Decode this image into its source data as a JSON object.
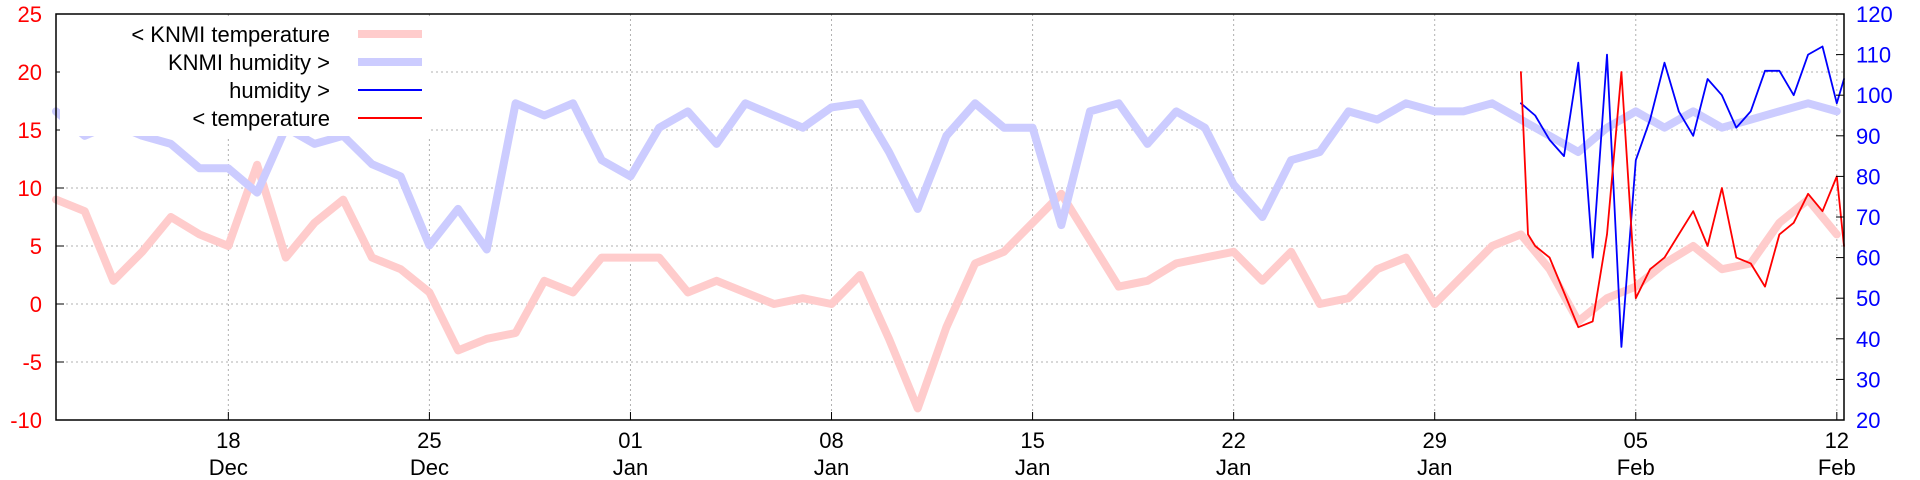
{
  "chart_data": {
    "type": "line",
    "x_start": "2020-12-12",
    "x_end": "2021-02-12",
    "x_ticks": [
      {
        "date": "2020-12-18",
        "day": "18",
        "month": "Dec"
      },
      {
        "date": "2020-12-25",
        "day": "25",
        "month": "Dec"
      },
      {
        "date": "2021-01-01",
        "day": "01",
        "month": "Jan"
      },
      {
        "date": "2021-01-08",
        "day": "08",
        "month": "Jan"
      },
      {
        "date": "2021-01-15",
        "day": "15",
        "month": "Jan"
      },
      {
        "date": "2021-01-22",
        "day": "22",
        "month": "Jan"
      },
      {
        "date": "2021-01-29",
        "day": "29",
        "month": "Jan"
      },
      {
        "date": "2021-02-05",
        "day": "05",
        "month": "Feb"
      },
      {
        "date": "2021-02-12",
        "day": "12",
        "month": "Feb"
      }
    ],
    "y_left": {
      "ylim": [
        -10,
        25
      ],
      "ticks": [
        "-10",
        "-5",
        "0",
        "5",
        "10",
        "15",
        "20",
        "25"
      ],
      "color": "#ff0000"
    },
    "y_right": {
      "ylim": [
        20,
        120
      ],
      "ticks": [
        "20",
        "30",
        "40",
        "50",
        "60",
        "70",
        "80",
        "90",
        "100",
        "110",
        "120"
      ],
      "color": "#0000ff"
    },
    "grid": true,
    "legend": {
      "placement": "top-left",
      "entries": [
        {
          "key": "knmi_temp",
          "label": "< KNMI temperature"
        },
        {
          "key": "knmi_hum",
          "label": "KNMI humidity >"
        },
        {
          "key": "hum",
          "label": "humidity >"
        },
        {
          "key": "temp",
          "label": "< temperature"
        }
      ]
    },
    "series": [
      {
        "key": "knmi_temp",
        "name": "< KNMI temperature",
        "axis": "left",
        "color": "#ffcccc",
        "points": [
          [
            "2020-12-12",
            9.0
          ],
          [
            "2020-12-13",
            8.0
          ],
          [
            "2020-12-14",
            2.0
          ],
          [
            "2020-12-15",
            4.5
          ],
          [
            "2020-12-16",
            7.5
          ],
          [
            "2020-12-17",
            6.0
          ],
          [
            "2020-12-18",
            5.0
          ],
          [
            "2020-12-19",
            12.0
          ],
          [
            "2020-12-20",
            4.0
          ],
          [
            "2020-12-21",
            7.0
          ],
          [
            "2020-12-22",
            9.0
          ],
          [
            "2020-12-23",
            4.0
          ],
          [
            "2020-12-24",
            3.0
          ],
          [
            "2020-12-25",
            1.0
          ],
          [
            "2020-12-26",
            -4.0
          ],
          [
            "2020-12-27",
            -3.0
          ],
          [
            "2020-12-28",
            -2.5
          ],
          [
            "2020-12-29",
            2.0
          ],
          [
            "2020-12-30",
            1.0
          ],
          [
            "2020-12-31",
            4.0
          ],
          [
            "2021-01-01",
            4.0
          ],
          [
            "2021-01-02",
            4.0
          ],
          [
            "2021-01-03",
            1.0
          ],
          [
            "2021-01-04",
            2.0
          ],
          [
            "2021-01-05",
            1.0
          ],
          [
            "2021-01-06",
            0.0
          ],
          [
            "2021-01-07",
            0.5
          ],
          [
            "2021-01-08",
            0.0
          ],
          [
            "2021-01-09",
            2.5
          ],
          [
            "2021-01-10",
            -3.0
          ],
          [
            "2021-01-11",
            -9.0
          ],
          [
            "2021-01-12",
            -2.0
          ],
          [
            "2021-01-13",
            3.5
          ],
          [
            "2021-01-14",
            4.5
          ],
          [
            "2021-01-15",
            7.0
          ],
          [
            "2021-01-16",
            9.5
          ],
          [
            "2021-01-17",
            5.5
          ],
          [
            "2021-01-18",
            1.5
          ],
          [
            "2021-01-19",
            2.0
          ],
          [
            "2021-01-20",
            3.5
          ],
          [
            "2021-01-21",
            4.0
          ],
          [
            "2021-01-22",
            4.5
          ],
          [
            "2021-01-23",
            2.0
          ],
          [
            "2021-01-24",
            4.5
          ],
          [
            "2021-01-25",
            0.0
          ],
          [
            "2021-01-26",
            0.5
          ],
          [
            "2021-01-27",
            3.0
          ],
          [
            "2021-01-28",
            4.0
          ],
          [
            "2021-01-29",
            0.0
          ],
          [
            "2021-01-30",
            2.5
          ],
          [
            "2021-01-31",
            5.0
          ],
          [
            "2021-02-01",
            6.0
          ],
          [
            "2021-02-02",
            3.0
          ],
          [
            "2021-02-03",
            -1.5
          ],
          [
            "2021-02-04",
            0.5
          ],
          [
            "2021-02-05",
            1.5
          ],
          [
            "2021-02-06",
            3.5
          ],
          [
            "2021-02-07",
            5.0
          ],
          [
            "2021-02-08",
            3.0
          ],
          [
            "2021-02-09",
            3.5
          ],
          [
            "2021-02-10",
            7.0
          ],
          [
            "2021-02-11",
            9.0
          ],
          [
            "2021-02-12",
            6.0
          ]
        ]
      },
      {
        "key": "knmi_hum",
        "name": "KNMI humidity >",
        "axis": "right",
        "color": "#ccccff",
        "points": [
          [
            "2020-12-12",
            96
          ],
          [
            "2020-12-13",
            90
          ],
          [
            "2020-12-14",
            93
          ],
          [
            "2020-12-15",
            90
          ],
          [
            "2020-12-16",
            88
          ],
          [
            "2020-12-17",
            82
          ],
          [
            "2020-12-18",
            82
          ],
          [
            "2020-12-19",
            76
          ],
          [
            "2020-12-20",
            92
          ],
          [
            "2020-12-21",
            88
          ],
          [
            "2020-12-22",
            90
          ],
          [
            "2020-12-23",
            83
          ],
          [
            "2020-12-24",
            80
          ],
          [
            "2020-12-25",
            63
          ],
          [
            "2020-12-26",
            72
          ],
          [
            "2020-12-27",
            62
          ],
          [
            "2020-12-28",
            98
          ],
          [
            "2020-12-29",
            95
          ],
          [
            "2020-12-30",
            98
          ],
          [
            "2020-12-31",
            84
          ],
          [
            "2021-01-01",
            80
          ],
          [
            "2021-01-02",
            92
          ],
          [
            "2021-01-03",
            96
          ],
          [
            "2021-01-04",
            88
          ],
          [
            "2021-01-05",
            98
          ],
          [
            "2021-01-06",
            95
          ],
          [
            "2021-01-07",
            92
          ],
          [
            "2021-01-08",
            97
          ],
          [
            "2021-01-09",
            98
          ],
          [
            "2021-01-10",
            86
          ],
          [
            "2021-01-11",
            72
          ],
          [
            "2021-01-12",
            90
          ],
          [
            "2021-01-13",
            98
          ],
          [
            "2021-01-14",
            92
          ],
          [
            "2021-01-15",
            92
          ],
          [
            "2021-01-16",
            68
          ],
          [
            "2021-01-17",
            96
          ],
          [
            "2021-01-18",
            98
          ],
          [
            "2021-01-19",
            88
          ],
          [
            "2021-01-20",
            96
          ],
          [
            "2021-01-21",
            92
          ],
          [
            "2021-01-22",
            78
          ],
          [
            "2021-01-23",
            70
          ],
          [
            "2021-01-24",
            84
          ],
          [
            "2021-01-25",
            86
          ],
          [
            "2021-01-26",
            96
          ],
          [
            "2021-01-27",
            94
          ],
          [
            "2021-01-28",
            98
          ],
          [
            "2021-01-29",
            96
          ],
          [
            "2021-01-30",
            96
          ],
          [
            "2021-01-31",
            98
          ],
          [
            "2021-02-01",
            94
          ],
          [
            "2021-02-02",
            90
          ],
          [
            "2021-02-03",
            86
          ],
          [
            "2021-02-04",
            92
          ],
          [
            "2021-02-05",
            96
          ],
          [
            "2021-02-06",
            92
          ],
          [
            "2021-02-07",
            96
          ],
          [
            "2021-02-08",
            92
          ],
          [
            "2021-02-09",
            94
          ],
          [
            "2021-02-10",
            96
          ],
          [
            "2021-02-11",
            98
          ],
          [
            "2021-02-12",
            96
          ]
        ]
      },
      {
        "key": "hum",
        "name": "humidity >",
        "axis": "right",
        "color": "#0000ff",
        "points": [
          [
            "2021-02-01",
            98
          ],
          [
            "2021-02-01T12:00",
            95
          ],
          [
            "2021-02-02",
            89
          ],
          [
            "2021-02-02T12:00",
            85
          ],
          [
            "2021-02-03",
            108
          ],
          [
            "2021-02-03T12:00",
            60
          ],
          [
            "2021-02-04",
            110
          ],
          [
            "2021-02-04T12:00",
            38
          ],
          [
            "2021-02-05",
            84
          ],
          [
            "2021-02-05T12:00",
            94
          ],
          [
            "2021-02-06",
            108
          ],
          [
            "2021-02-06T12:00",
            96
          ],
          [
            "2021-02-07",
            90
          ],
          [
            "2021-02-07T12:00",
            104
          ],
          [
            "2021-02-08",
            100
          ],
          [
            "2021-02-08T12:00",
            92
          ],
          [
            "2021-02-09",
            96
          ],
          [
            "2021-02-09T12:00",
            106
          ],
          [
            "2021-02-10",
            106
          ],
          [
            "2021-02-10T12:00",
            100
          ],
          [
            "2021-02-11",
            110
          ],
          [
            "2021-02-11T12:00",
            112
          ],
          [
            "2021-02-12",
            98
          ],
          [
            "2021-02-12T06:00",
            104
          ]
        ]
      },
      {
        "key": "temp",
        "name": "< temperature",
        "axis": "left",
        "color": "#ff0000",
        "points": [
          [
            "2021-02-01",
            20.0
          ],
          [
            "2021-02-01T06:00",
            6.0
          ],
          [
            "2021-02-01T12:00",
            5.0
          ],
          [
            "2021-02-02",
            4.0
          ],
          [
            "2021-02-02T12:00",
            1.0
          ],
          [
            "2021-02-03",
            -2.0
          ],
          [
            "2021-02-03T12:00",
            -1.5
          ],
          [
            "2021-02-04",
            6.0
          ],
          [
            "2021-02-04T12:00",
            20.0
          ],
          [
            "2021-02-05",
            0.5
          ],
          [
            "2021-02-05T12:00",
            3.0
          ],
          [
            "2021-02-06",
            4.0
          ],
          [
            "2021-02-06T12:00",
            6.0
          ],
          [
            "2021-02-07",
            8.0
          ],
          [
            "2021-02-07T12:00",
            5.0
          ],
          [
            "2021-02-08",
            10.0
          ],
          [
            "2021-02-08T12:00",
            4.0
          ],
          [
            "2021-02-09",
            3.5
          ],
          [
            "2021-02-09T12:00",
            1.5
          ],
          [
            "2021-02-10",
            6.0
          ],
          [
            "2021-02-10T12:00",
            7.0
          ],
          [
            "2021-02-11",
            9.5
          ],
          [
            "2021-02-11T12:00",
            8.0
          ],
          [
            "2021-02-12",
            11.0
          ],
          [
            "2021-02-12T06:00",
            5.0
          ]
        ]
      }
    ]
  }
}
